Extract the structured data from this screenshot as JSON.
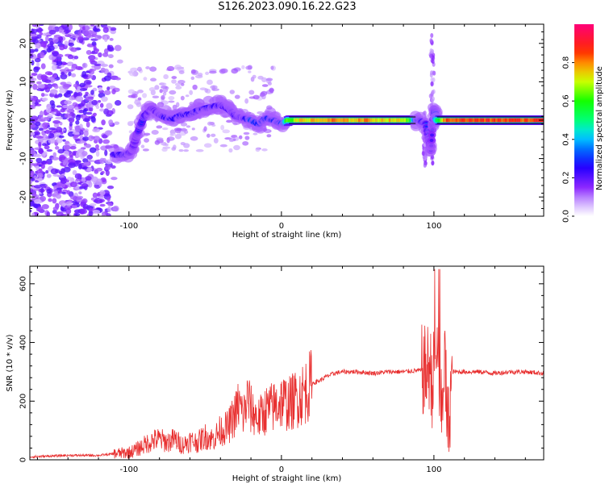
{
  "title": "S126.2023.090.16.22.G23",
  "chart_data": [
    {
      "type": "heatmap",
      "xlabel": "Height of straight line (km)",
      "ylabel": "Frequency (Hz)",
      "xlim": [
        -165,
        172
      ],
      "ylim": [
        -25,
        25
      ],
      "xticks": [
        -100,
        0,
        100
      ],
      "yticks": [
        -20,
        -10,
        0,
        10,
        20
      ],
      "colorbar": {
        "label": "Normalized spectral amplitude",
        "range": [
          0,
          1
        ],
        "ticks": [
          "0.0",
          "0.2",
          "0.4",
          "0.6",
          "0.8"
        ],
        "colormap": "gist_rainbow_r"
      },
      "ridge": [
        {
          "x": -110,
          "y": -9,
          "a": 0.3
        },
        {
          "x": -102,
          "y": -9,
          "a": 0.35
        },
        {
          "x": -98,
          "y": -8,
          "a": 0.25
        },
        {
          "x": -95,
          "y": -4,
          "a": 0.25
        },
        {
          "x": -90,
          "y": 1,
          "a": 0.3
        },
        {
          "x": -85,
          "y": 3,
          "a": 0.25
        },
        {
          "x": -80,
          "y": 1.5,
          "a": 0.3
        },
        {
          "x": -75,
          "y": 0.5,
          "a": 0.35
        },
        {
          "x": -70,
          "y": 0.5,
          "a": 0.35
        },
        {
          "x": -65,
          "y": 1.5,
          "a": 0.35
        },
        {
          "x": -60,
          "y": 1.5,
          "a": 0.35
        },
        {
          "x": -55,
          "y": 2.5,
          "a": 0.35
        },
        {
          "x": -50,
          "y": 3,
          "a": 0.35
        },
        {
          "x": -45,
          "y": 3.5,
          "a": 0.35
        },
        {
          "x": -40,
          "y": 4,
          "a": 0.3
        },
        {
          "x": -35,
          "y": 3,
          "a": 0.3
        },
        {
          "x": -30,
          "y": 1,
          "a": 0.3
        },
        {
          "x": -25,
          "y": 0.5,
          "a": 0.3
        },
        {
          "x": -20,
          "y": 0,
          "a": 0.45
        },
        {
          "x": -15,
          "y": -1,
          "a": 0.4
        },
        {
          "x": -10,
          "y": 0.5,
          "a": 0.4
        },
        {
          "x": -5,
          "y": 0,
          "a": 0.4
        },
        {
          "x": 0,
          "y": -1,
          "a": 0.4
        },
        {
          "x": 5,
          "y": 0,
          "a": 0.7
        },
        {
          "x": 15,
          "y": 0,
          "a": 0.85
        },
        {
          "x": 25,
          "y": 0,
          "a": 0.85
        },
        {
          "x": 35,
          "y": 0,
          "a": 0.9
        },
        {
          "x": 45,
          "y": 0,
          "a": 0.85
        },
        {
          "x": 55,
          "y": 0,
          "a": 0.9
        },
        {
          "x": 65,
          "y": 0,
          "a": 0.85
        },
        {
          "x": 75,
          "y": 0,
          "a": 0.85
        },
        {
          "x": 85,
          "y": 0,
          "a": 0.75
        },
        {
          "x": 90,
          "y": 0,
          "a": 0.4
        },
        {
          "x": 95,
          "y": -1,
          "a": 0.3
        },
        {
          "x": 98,
          "y": -8,
          "a": 0.2
        },
        {
          "x": 100,
          "y": 3,
          "a": 0.25
        },
        {
          "x": 102,
          "y": 0,
          "a": 0.6
        },
        {
          "x": 110,
          "y": 0,
          "a": 0.95
        },
        {
          "x": 120,
          "y": 0,
          "a": 0.95
        },
        {
          "x": 130,
          "y": 0,
          "a": 0.95
        },
        {
          "x": 140,
          "y": 0,
          "a": 0.95
        },
        {
          "x": 150,
          "y": 0,
          "a": 0.95
        },
        {
          "x": 160,
          "y": 0,
          "a": 0.95
        },
        {
          "x": 170,
          "y": 0,
          "a": 0.95
        }
      ]
    },
    {
      "type": "line",
      "xlabel": "Height of straight line (km)",
      "ylabel": "SNR (10 * v/v)",
      "xlim": [
        -165,
        172
      ],
      "ylim": [
        0,
        660
      ],
      "xticks": [
        -100,
        0,
        100
      ],
      "yticks": [
        0,
        200,
        400,
        600
      ],
      "color": "#e83030",
      "series": [
        {
          "x": [
            -165,
            -140,
            -120,
            -110,
            -100,
            -95,
            -90,
            -85,
            -80,
            -75,
            -70,
            -65,
            -60,
            -55,
            -50,
            -45,
            -40,
            -35,
            -30,
            -28,
            -25,
            -22,
            -20,
            -15,
            -10,
            -5,
            0,
            5,
            10,
            15,
            20,
            25,
            30,
            35,
            40,
            50,
            60,
            70,
            80,
            90,
            95,
            97,
            99,
            101,
            103,
            105,
            107,
            109,
            112,
            120,
            130,
            140,
            150,
            160,
            172
          ],
          "y": [
            10,
            15,
            15,
            20,
            25,
            35,
            50,
            65,
            70,
            60,
            70,
            50,
            65,
            60,
            80,
            70,
            100,
            110,
            160,
            190,
            150,
            210,
            170,
            140,
            170,
            180,
            200,
            190,
            210,
            230,
            260,
            270,
            285,
            295,
            300,
            300,
            295,
            300,
            300,
            305,
            300,
            320,
            260,
            330,
            280,
            140,
            370,
            80,
            300,
            300,
            300,
            295,
            300,
            300,
            295
          ]
        }
      ]
    }
  ]
}
